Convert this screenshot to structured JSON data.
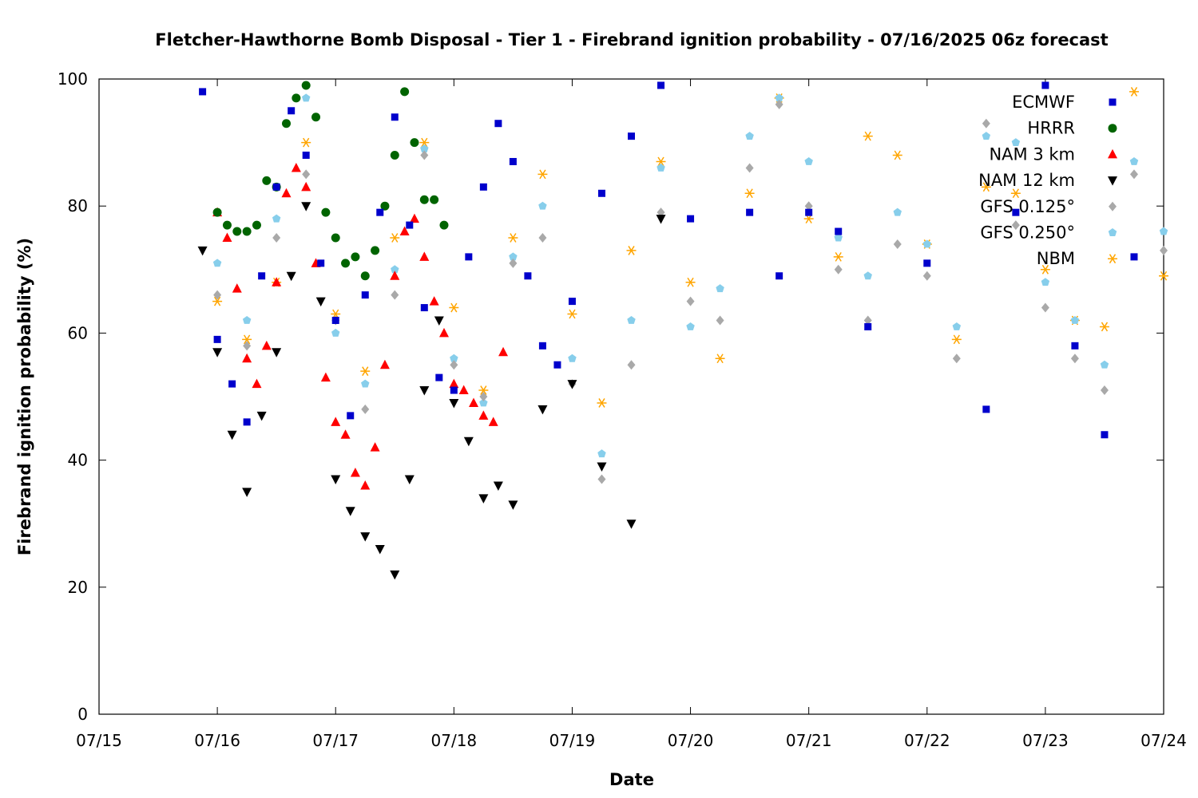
{
  "chart_data": {
    "type": "scatter",
    "title": "Fletcher-Hawthorne Bomb Disposal - Tier 1 - Firebrand ignition probability - 07/16/2025 06z forecast",
    "xlabel": "Date",
    "ylabel": "Firebrand ignition probability (%)",
    "xlim": [
      "07/15 00z",
      "07/24 00z"
    ],
    "ylim": [
      0,
      100
    ],
    "x_ticks": [
      "07/15",
      "07/16",
      "07/17",
      "07/18",
      "07/19",
      "07/20",
      "07/21",
      "07/22",
      "07/23",
      "07/24"
    ],
    "y_ticks": [
      "0",
      "20",
      "40",
      "60",
      "80",
      "100"
    ],
    "grid": false,
    "legend_position": "top-right",
    "series": [
      {
        "name": "ECMWF",
        "marker": "square",
        "color": "#0000cc",
        "x": [
          "07/15 21z",
          "07/16 00z",
          "07/16 03z",
          "07/16 06z",
          "07/16 09z",
          "07/16 12z",
          "07/16 15z",
          "07/16 18z",
          "07/16 21z",
          "07/17 00z",
          "07/17 03z",
          "07/17 06z",
          "07/17 09z",
          "07/17 12z",
          "07/17 15z",
          "07/17 18z",
          "07/17 21z",
          "07/18 00z",
          "07/18 03z",
          "07/18 06z",
          "07/18 09z",
          "07/18 12z",
          "07/18 15z",
          "07/18 18z",
          "07/18 21z",
          "07/19 00z",
          "07/19 06z",
          "07/19 12z",
          "07/19 18z",
          "07/20 00z",
          "07/20 12z",
          "07/20 18z",
          "07/21 00z",
          "07/21 06z",
          "07/21 12z",
          "07/22 00z",
          "07/22 12z",
          "07/22 18z",
          "07/23 00z",
          "07/23 06z",
          "07/23 12z",
          "07/23 18z"
        ],
        "y": [
          98,
          59,
          52,
          46,
          69,
          83,
          95,
          88,
          71,
          62,
          47,
          66,
          79,
          94,
          77,
          64,
          53,
          51,
          72,
          83,
          93,
          87,
          69,
          58,
          55,
          65,
          82,
          91,
          99,
          78,
          79,
          69,
          79,
          76,
          61,
          71,
          48,
          79,
          99,
          58,
          44,
          72
        ]
      },
      {
        "name": "HRRR",
        "marker": "circle",
        "color": "#006400",
        "x": [
          "07/16 00z",
          "07/16 02z",
          "07/16 04z",
          "07/16 06z",
          "07/16 08z",
          "07/16 10z",
          "07/16 12z",
          "07/16 14z",
          "07/16 16z",
          "07/16 18z",
          "07/16 20z",
          "07/16 22z",
          "07/17 00z",
          "07/17 02z",
          "07/17 04z",
          "07/17 06z",
          "07/17 08z",
          "07/17 10z",
          "07/17 12z",
          "07/17 14z",
          "07/17 16z",
          "07/17 18z",
          "07/17 20z",
          "07/17 22z"
        ],
        "y": [
          79,
          77,
          76,
          76,
          77,
          84,
          83,
          93,
          97,
          99,
          94,
          79,
          75,
          71,
          72,
          69,
          73,
          80,
          88,
          98,
          90,
          81,
          81,
          77
        ]
      },
      {
        "name": "NAM 3 km",
        "marker": "triangle-up",
        "color": "#ff0000",
        "x": [
          "07/16 00z",
          "07/16 02z",
          "07/16 04z",
          "07/16 06z",
          "07/16 08z",
          "07/16 10z",
          "07/16 12z",
          "07/16 14z",
          "07/16 16z",
          "07/16 18z",
          "07/16 20z",
          "07/16 22z",
          "07/17 00z",
          "07/17 02z",
          "07/17 04z",
          "07/17 06z",
          "07/17 08z",
          "07/17 10z",
          "07/17 12z",
          "07/17 14z",
          "07/17 16z",
          "07/17 18z",
          "07/17 20z",
          "07/17 22z",
          "07/18 00z",
          "07/18 02z",
          "07/18 04z",
          "07/18 06z",
          "07/18 08z",
          "07/18 10z"
        ],
        "y": [
          79,
          75,
          67,
          56,
          52,
          58,
          68,
          82,
          86,
          83,
          71,
          53,
          46,
          44,
          38,
          36,
          42,
          55,
          69,
          76,
          78,
          72,
          65,
          60,
          52,
          51,
          49,
          47,
          46,
          57
        ]
      },
      {
        "name": "NAM 12 km",
        "marker": "triangle-down",
        "color": "#000000",
        "x": [
          "07/15 21z",
          "07/16 00z",
          "07/16 03z",
          "07/16 06z",
          "07/16 09z",
          "07/16 12z",
          "07/16 15z",
          "07/16 18z",
          "07/16 21z",
          "07/17 00z",
          "07/17 03z",
          "07/17 06z",
          "07/17 09z",
          "07/17 12z",
          "07/17 15z",
          "07/17 18z",
          "07/17 21z",
          "07/18 00z",
          "07/18 03z",
          "07/18 06z",
          "07/18 09z",
          "07/18 12z",
          "07/18 18z",
          "07/19 00z",
          "07/19 06z",
          "07/19 12z",
          "07/19 18z"
        ],
        "y": [
          73,
          57,
          44,
          35,
          47,
          57,
          69,
          80,
          65,
          37,
          32,
          28,
          26,
          22,
          37,
          51,
          62,
          49,
          43,
          34,
          36,
          33,
          48,
          52,
          39,
          30,
          78
        ]
      },
      {
        "name": "GFS 0.125°",
        "marker": "diamond",
        "color": "#a9a9a9",
        "x": [
          "07/16 00z",
          "07/16 06z",
          "07/16 12z",
          "07/16 18z",
          "07/17 00z",
          "07/17 06z",
          "07/17 12z",
          "07/17 18z",
          "07/18 00z",
          "07/18 06z",
          "07/18 12z",
          "07/18 18z",
          "07/19 00z",
          "07/19 06z",
          "07/19 12z",
          "07/19 18z",
          "07/20 00z",
          "07/20 06z",
          "07/20 12z",
          "07/20 18z",
          "07/21 00z",
          "07/21 06z",
          "07/21 12z",
          "07/21 18z",
          "07/22 00z",
          "07/22 06z",
          "07/22 12z",
          "07/22 18z",
          "07/23 00z",
          "07/23 06z",
          "07/23 12z",
          "07/23 18z",
          "07/24 00z"
        ],
        "y": [
          66,
          58,
          75,
          85,
          62,
          48,
          66,
          88,
          55,
          50,
          71,
          75,
          52,
          37,
          55,
          79,
          65,
          62,
          86,
          96,
          80,
          70,
          62,
          74,
          69,
          56,
          93,
          77,
          64,
          56,
          51,
          85,
          73
        ]
      },
      {
        "name": "GFS 0.250°",
        "marker": "pentagon",
        "color": "#87ceeb",
        "x": [
          "07/16 00z",
          "07/16 06z",
          "07/16 12z",
          "07/16 18z",
          "07/17 00z",
          "07/17 06z",
          "07/17 12z",
          "07/17 18z",
          "07/18 00z",
          "07/18 06z",
          "07/18 12z",
          "07/18 18z",
          "07/19 00z",
          "07/19 06z",
          "07/19 12z",
          "07/19 18z",
          "07/20 00z",
          "07/20 06z",
          "07/20 12z",
          "07/20 18z",
          "07/21 00z",
          "07/21 06z",
          "07/21 12z",
          "07/21 18z",
          "07/22 00z",
          "07/22 06z",
          "07/22 12z",
          "07/22 18z",
          "07/23 00z",
          "07/23 06z",
          "07/23 12z",
          "07/23 18z",
          "07/24 00z"
        ],
        "y": [
          71,
          62,
          78,
          97,
          60,
          52,
          70,
          89,
          56,
          49,
          72,
          80,
          56,
          41,
          62,
          86,
          61,
          67,
          91,
          97,
          87,
          75,
          69,
          79,
          74,
          61,
          91,
          90,
          68,
          62,
          55,
          87,
          76
        ]
      },
      {
        "name": "NBM",
        "marker": "asterisk",
        "color": "#ffa500",
        "x": [
          "07/16 00z",
          "07/16 06z",
          "07/16 12z",
          "07/16 18z",
          "07/17 00z",
          "07/17 06z",
          "07/17 12z",
          "07/17 18z",
          "07/18 00z",
          "07/18 06z",
          "07/18 12z",
          "07/18 18z",
          "07/19 00z",
          "07/19 06z",
          "07/19 12z",
          "07/19 18z",
          "07/20 00z",
          "07/20 06z",
          "07/20 12z",
          "07/20 18z",
          "07/21 00z",
          "07/21 06z",
          "07/21 12z",
          "07/21 18z",
          "07/22 00z",
          "07/22 06z",
          "07/22 12z",
          "07/22 18z",
          "07/23 00z",
          "07/23 06z",
          "07/23 12z",
          "07/23 18z",
          "07/24 00z"
        ],
        "y": [
          65,
          59,
          68,
          90,
          63,
          54,
          75,
          90,
          64,
          51,
          75,
          85,
          63,
          49,
          73,
          87,
          68,
          56,
          82,
          97,
          78,
          72,
          91,
          88,
          74,
          59,
          83,
          82,
          70,
          62,
          61,
          98,
          69
        ]
      }
    ]
  }
}
